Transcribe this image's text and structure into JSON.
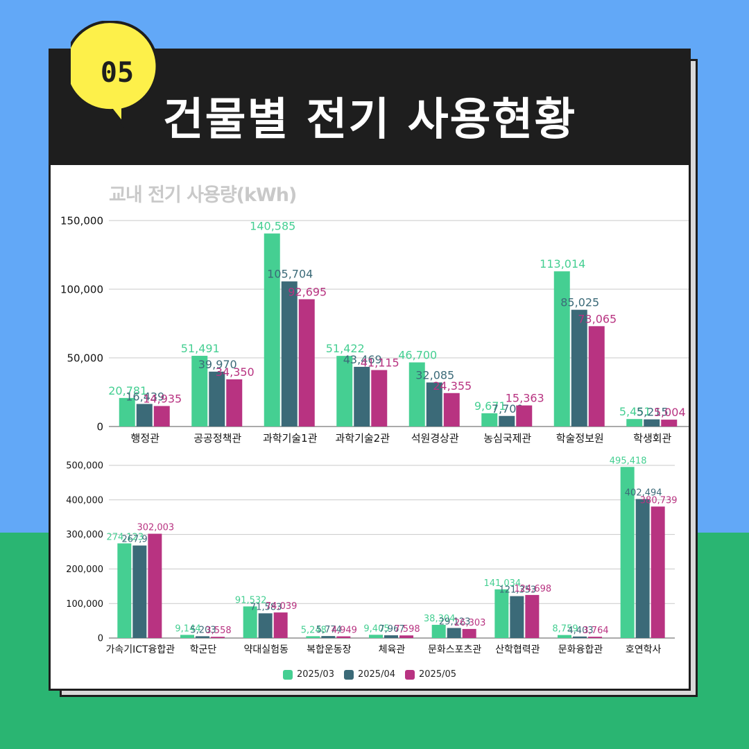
{
  "header": {
    "badge": "05",
    "title": "건물별 전기 사용현황"
  },
  "colors": {
    "s1": "#45cf92",
    "s2": "#3b6a78",
    "s3": "#b83381"
  },
  "chart_data": [
    {
      "type": "bar",
      "title": "교내 전기 사용량(kWh)",
      "categories": [
        "행정관",
        "공공정책관",
        "과학기술1관",
        "과학기술2관",
        "석원경상관",
        "농심국제관",
        "학술정보원",
        "학생회관"
      ],
      "series": [
        {
          "name": "2025/03",
          "values": [
            20781,
            51491,
            140585,
            51422,
            46700,
            9671,
            113014,
            5451
          ]
        },
        {
          "name": "2025/04",
          "values": [
            16439,
            39970,
            105704,
            43469,
            32085,
            7700,
            85025,
            5215
          ]
        },
        {
          "name": "2025/05",
          "values": [
            14935,
            34350,
            92695,
            41115,
            24355,
            15363,
            73065,
            5004
          ]
        }
      ],
      "value_labels": [
        [
          "20,781",
          "51,491",
          "140,585",
          "51,422",
          "46,700",
          "9,671",
          "113,014",
          "5,451"
        ],
        [
          "16,439",
          "39,970",
          "105,704",
          "43,469",
          "32,085",
          "7,700",
          "85,025",
          "5,215"
        ],
        [
          "14,935",
          "34,350",
          "92,695",
          "41,115",
          "24,355",
          "15,363",
          "73,065",
          "5,004"
        ]
      ],
      "yticks": [
        "0",
        "50,000",
        "100,000",
        "150,000"
      ],
      "ylim": [
        0,
        150000
      ],
      "grid": true
    },
    {
      "type": "bar",
      "categories": [
        "가속기ICT융합관",
        "학군단",
        "약대실험동",
        "복합운동장",
        "체육관",
        "문화스포츠관",
        "산학협력관",
        "문화융합관",
        "호연학사"
      ],
      "series": [
        {
          "name": "2025/03",
          "values": [
            274123,
            9144,
            91532,
            5248,
            9405,
            38304,
            141034,
            8759,
            495418
          ]
        },
        {
          "name": "2025/04",
          "values": [
            267910,
            5203,
            71583,
            5774,
            7967,
            29123,
            121353,
            4403,
            402494
          ]
        },
        {
          "name": "2025/05",
          "values": [
            302003,
            3558,
            74039,
            4949,
            7598,
            26303,
            124698,
            3764,
            380739
          ]
        }
      ],
      "value_labels": [
        [
          "274,123",
          "9,144",
          "91,532",
          "5,248",
          "9,405",
          "38,304",
          "141,034",
          "8,759",
          "495,418"
        ],
        [
          "267,910",
          "5,203",
          "71,583",
          "5,774",
          "7,967",
          "29,123",
          "121,353",
          "4,403",
          "402,494"
        ],
        [
          "302,003",
          "3,558",
          "74,039",
          "4,949",
          "7,598",
          "26,303",
          "124,698",
          "3,764",
          "380,739"
        ]
      ],
      "yticks": [
        "0",
        "100,000",
        "200,000",
        "300,000",
        "400,000",
        "500,000"
      ],
      "ylim": [
        0,
        500000
      ],
      "grid": true,
      "legend": "bottom"
    }
  ]
}
